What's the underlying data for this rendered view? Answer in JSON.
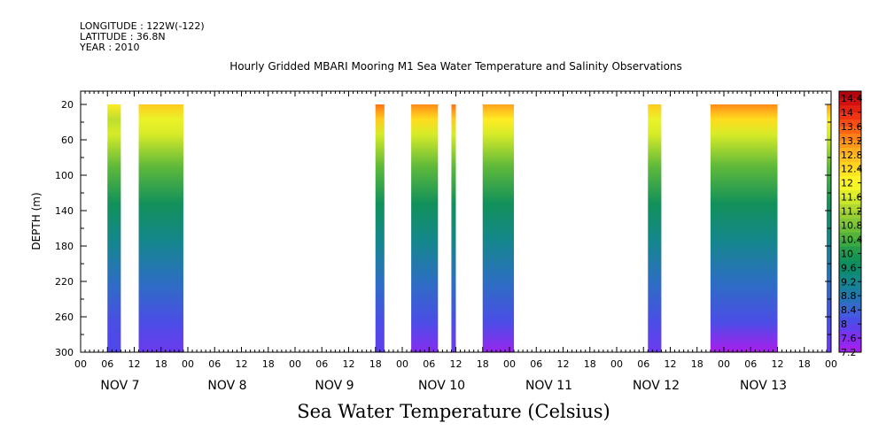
{
  "header": {
    "longitude": "LONGITUDE : 122W(-122)",
    "latitude": "LATITUDE : 36.8N",
    "year": "YEAR : 2010"
  },
  "chart_data": {
    "type": "heatmap",
    "title": "Hourly Gridded MBARI Mooring M1 Sea Water Temperature and Salinity Observations",
    "subtitle": "Sea Water Temperature (Celsius)",
    "ylabel": "DEPTH (m)",
    "xlabel": "",
    "y_inverted": true,
    "ylim": [
      300,
      5
    ],
    "y_ticks": [
      20,
      60,
      100,
      140,
      180,
      220,
      260,
      300
    ],
    "x_hour_ticks": [
      "00",
      "06",
      "12",
      "18",
      "00",
      "06",
      "12",
      "18",
      "00",
      "06",
      "12",
      "18",
      "00",
      "06",
      "12",
      "18",
      "00",
      "06",
      "12",
      "18",
      "00",
      "06",
      "12",
      "18",
      "00",
      "06",
      "12",
      "18",
      "00"
    ],
    "day_labels": [
      "NOV  7",
      "NOV  8",
      "NOV  9",
      "NOV 10",
      "NOV 11",
      "NOV 12",
      "NOV 13"
    ],
    "colorbar": {
      "labels": [
        "14.4",
        "14",
        "13.6",
        "13.2",
        "12.8",
        "12.4",
        "12",
        "11.6",
        "11.2",
        "10.8",
        "10.4",
        "10",
        "9.6",
        "9.2",
        "8.8",
        "8.4",
        "8",
        "7.6",
        "7.2"
      ],
      "min": 7.2,
      "max": 14.6,
      "step": 0.2
    },
    "data_segments_hours": [
      {
        "start": 6,
        "end": 9,
        "surface_temp": 12.2,
        "bottom_temp": 8.0
      },
      {
        "start": 13,
        "end": 23,
        "surface_temp": 12.6,
        "bottom_temp": 7.8
      },
      {
        "start": 66,
        "end": 68,
        "surface_temp": 13.4,
        "bottom_temp": 7.9
      },
      {
        "start": 74,
        "end": 80,
        "surface_temp": 13.2,
        "bottom_temp": 7.6
      },
      {
        "start": 83,
        "end": 84,
        "surface_temp": 13.4,
        "bottom_temp": 7.8
      },
      {
        "start": 90,
        "end": 97,
        "surface_temp": 13.0,
        "bottom_temp": 7.4
      },
      {
        "start": 127,
        "end": 130,
        "surface_temp": 12.6,
        "bottom_temp": 7.8
      },
      {
        "start": 141,
        "end": 156,
        "surface_temp": 13.2,
        "bottom_temp": 7.2
      },
      {
        "start": 167,
        "end": 168,
        "surface_temp": 13.0,
        "bottom_temp": 7.8
      }
    ]
  }
}
